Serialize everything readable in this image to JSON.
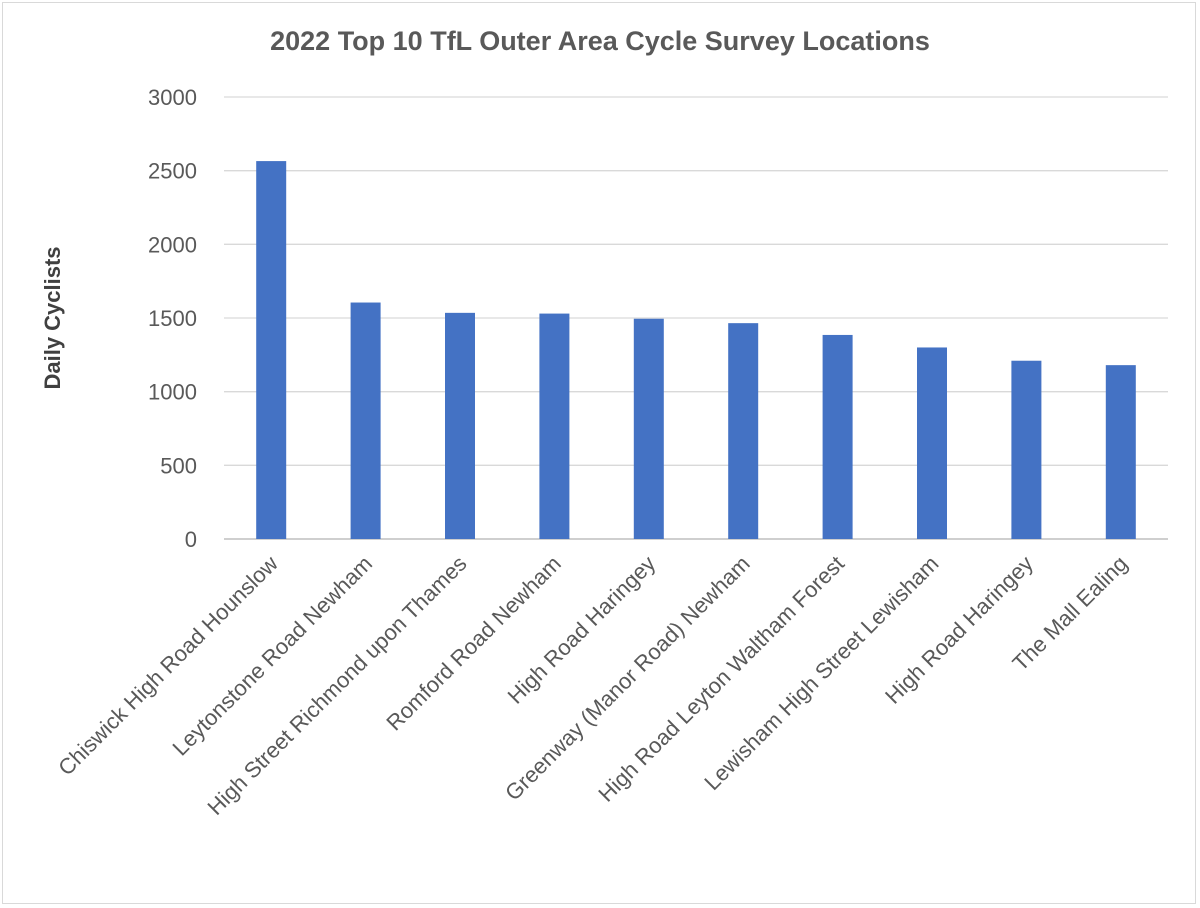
{
  "chart_data": {
    "type": "bar",
    "title": "2022 Top 10 TfL Outer Area Cycle Survey Locations",
    "xlabel": "",
    "ylabel": "Daily Cyclists",
    "ylim": [
      0,
      3000
    ],
    "yticks": [
      0,
      500,
      1000,
      1500,
      2000,
      2500,
      3000
    ],
    "grid": true,
    "legend": "none",
    "bar_color": "#4472C4",
    "categories": [
      "Chiswick High Road Hounslow",
      "Leytonstone Road Newham",
      "High Street Richmond upon Thames",
      "Romford Road Newham",
      "High Road Haringey",
      "Greenway (Manor Road) Newham",
      "High Road Leyton Waltham Forest",
      "Lewisham High Street Lewisham",
      "High Road Haringey",
      "The Mall Ealing"
    ],
    "values": [
      2565,
      1605,
      1535,
      1530,
      1495,
      1465,
      1385,
      1300,
      1210,
      1180
    ]
  }
}
